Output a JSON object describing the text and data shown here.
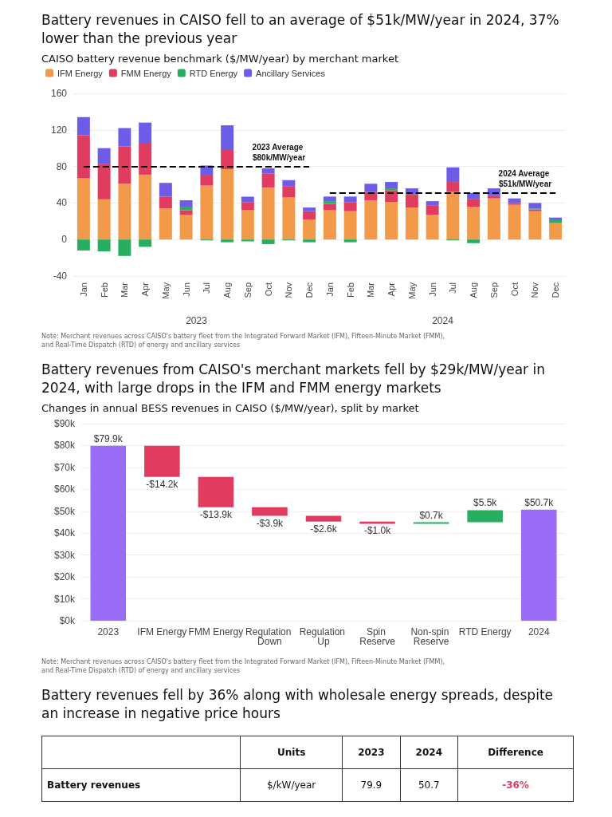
{
  "chart_data": [
    {
      "type": "bar",
      "stacked": true,
      "title": "Battery revenues in CAISO fell to an average of $51k/MW/year in 2024, 37% lower than the previous year",
      "subtitle": "CAISO battery revenue benchmark ($/MW/year) by merchant market",
      "categories": [
        "Jan",
        "Feb",
        "Mar",
        "Apr",
        "May",
        "Jun",
        "Jul",
        "Aug",
        "Sep",
        "Oct",
        "Nov",
        "Dec",
        "Jan",
        "Feb",
        "Mar",
        "Apr",
        "May",
        "Jun",
        "Jul",
        "Aug",
        "Sep",
        "Oct",
        "Nov",
        "Dec"
      ],
      "series": [
        {
          "name": "IFM Energy",
          "color": "#f2994a",
          "values": [
            67,
            44,
            61,
            71,
            34,
            27,
            59,
            77,
            32,
            57,
            46,
            22,
            32,
            31,
            43,
            41,
            35,
            27,
            52,
            36,
            45,
            38,
            31,
            18
          ]
        },
        {
          "name": "FMM Energy",
          "color": "#e03c5f",
          "values": [
            47,
            39,
            41,
            34,
            13,
            5,
            11,
            21,
            9,
            15,
            12,
            9,
            7,
            10,
            9,
            13,
            14,
            10,
            11,
            8,
            3,
            2,
            2,
            null
          ]
        },
        {
          "name": "RTD Energy",
          "color": "#27ae60",
          "values": [
            -12,
            -13,
            -18,
            -8,
            null,
            4,
            -1,
            -3,
            -2,
            -5,
            -1,
            -3,
            3,
            -3,
            null,
            2,
            1,
            null,
            -1,
            -4,
            null,
            null,
            1,
            4
          ]
        },
        {
          "name": "Ancillary Services",
          "color": "#6c5ce7",
          "values": [
            20,
            17,
            20,
            23,
            15,
            7,
            11,
            27,
            6,
            6,
            7,
            4,
            5,
            6,
            9,
            7,
            6,
            5,
            16,
            7,
            8,
            5,
            6,
            2
          ]
        }
      ],
      "ylim": [
        -40,
        160
      ],
      "yticks": [
        -40,
        0,
        40,
        80,
        120,
        160
      ],
      "grid": "y",
      "legend": "top left",
      "ref_lines": [
        {
          "axis": "y",
          "value": 80,
          "label": "2023 Average $80k/MW/year",
          "color": "#000000",
          "line_style": "dashed"
        },
        {
          "axis": "y",
          "value": 51,
          "label": "2024 Average $51k/MW/year",
          "color": "#000000",
          "line_style": "dashed"
        }
      ],
      "annotations": [
        "2023",
        "2024",
        "Note: Merchant revenues across CAISO's battery fleet from the Integrated Forward Market (IFM), Fifteen-Minute Market (FMM), and Real-Time Dispatch (RTD) of energy and ancillary services"
      ]
    },
    {
      "type": "bar",
      "title": "Battery revenues from CAISO's merchant markets fell by $29k/MW/year in 2024, with large drops in the IFM and FMM energy markets",
      "subtitle": "Changes in annual BESS revenues in CAISO ($/MW/year), split by market",
      "categories": [
        "2023",
        "IFM Energy",
        "FMM Energy",
        "Regulation Down",
        "Regulation Up",
        "Spin Reserve",
        "Non-spin Reserve",
        "RTD Energy",
        "2024"
      ],
      "values": [
        79.9,
        -14.2,
        -13.9,
        -3.9,
        -2.6,
        -1.0,
        0.7,
        5.5,
        50.7
      ],
      "base": [
        0,
        79.9,
        65.7,
        51.8,
        47.9,
        45.3,
        44.3,
        45.0,
        0
      ],
      "colors": [
        "#9b6cf7",
        "#e03c5f",
        "#e03c5f",
        "#e03c5f",
        "#e03c5f",
        "#e03c5f",
        "#27ae60",
        "#27ae60",
        "#9b6cf7"
      ],
      "value_labels": [
        "$79.9k",
        "-$14.2k",
        "-$13.9k",
        "-$3.9k",
        "-$2.6k",
        "-$1.0k",
        "$0.7k",
        "$5.5k",
        "$50.7k"
      ],
      "ylim": [
        0,
        90
      ],
      "yticks": [
        {
          "value": 0,
          "label": "$0k"
        },
        {
          "value": 10,
          "label": "$10k"
        },
        {
          "value": 20,
          "label": "$20k"
        },
        {
          "value": 30,
          "label": "$30k"
        },
        {
          "value": 40,
          "label": "$40k"
        },
        {
          "value": 50,
          "label": "$50k"
        },
        {
          "value": 60,
          "label": "$60k"
        },
        {
          "value": 70,
          "label": "$70k"
        },
        {
          "value": 80,
          "label": "$80k"
        },
        {
          "value": 90,
          "label": "$90k"
        }
      ],
      "grid": "y",
      "annotations": [
        "Note: Merchant revenues across CAISO's battery fleet from the Integrated Forward Market (IFM), Fifteen-Minute Market (FMM), and Real-Time Dispatch (RTD) of energy and ancillary services"
      ]
    },
    {
      "type": "other",
      "title": "Battery revenues fell by 36% along with wholesale energy spreads, despite an increase in negative price hours",
      "categories": [
        null,
        "Units",
        "2023",
        "2024",
        "Difference"
      ],
      "annotations": [
        "Battery revenues",
        "$/kW/year",
        "79.9",
        "50.7",
        "-36%"
      ]
    }
  ]
}
